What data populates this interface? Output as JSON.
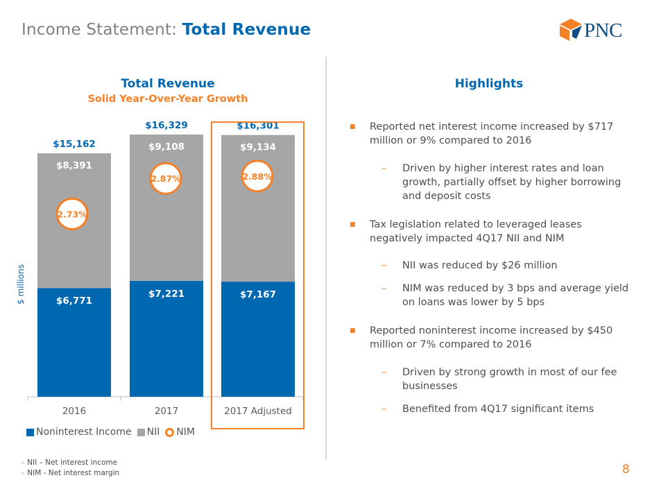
{
  "header": {
    "title_light": "Income Statement:",
    "title_bold": "Total Revenue",
    "logo_text": "PNC"
  },
  "chart_titles": {
    "title": "Total Revenue",
    "subtitle": "Solid Year-Over-Year Growth"
  },
  "chart_data": {
    "type": "bar",
    "stacked": true,
    "title": "Total Revenue",
    "subtitle": "Solid Year-Over-Year Growth",
    "ylabel": "$ millions",
    "categories": [
      "2016",
      "2017",
      "2017 Adjusted"
    ],
    "series": [
      {
        "name": "Noninterest Income",
        "values": [
          6771,
          7221,
          7167
        ],
        "labels": [
          "$6,771",
          "$7,221",
          "$7,167"
        ],
        "color": "#0067b1"
      },
      {
        "name": "NII",
        "values": [
          8391,
          9108,
          9134
        ],
        "labels": [
          "$8,391",
          "$9,108",
          "$9,134"
        ],
        "color": "#a6a6a6"
      }
    ],
    "totals": [
      15162,
      16329,
      16301
    ],
    "total_labels": [
      "$15,162",
      "$16,329",
      "$16,301"
    ],
    "nim": {
      "name": "NIM",
      "values": [
        "2.73%",
        "2.87%",
        "2.88%"
      ],
      "color": "#f58025"
    },
    "highlighted_category": "2017 Adjusted",
    "ylim": [
      0,
      16500
    ],
    "legend_position": "bottom-left",
    "grid": false
  },
  "footnotes": [
    "NII – Net interest income",
    "NIM -  Net interest margin"
  ],
  "highlights": {
    "title": "Highlights",
    "items": [
      "Reported net interest income increased by $717 million or 9% compared to 2016",
      "Driven by higher interest rates and loan growth, partially offset by higher borrowing and deposit costs",
      "Tax legislation related to leveraged leases negatively impacted 4Q17 NII and NIM",
      "NII was reduced by $26 million",
      "NIM was reduced by 3 bps and average yield on loans was lower by 5 bps",
      "Reported noninterest income increased by $450 million or 7% compared to 2016",
      "Driven by strong growth in most of our fee businesses",
      "Benefited from 4Q17 significant items"
    ]
  },
  "page_number": "8",
  "colors": {
    "brand_blue": "#0067b1",
    "brand_orange": "#f58025",
    "nii_gray": "#a6a6a6"
  }
}
